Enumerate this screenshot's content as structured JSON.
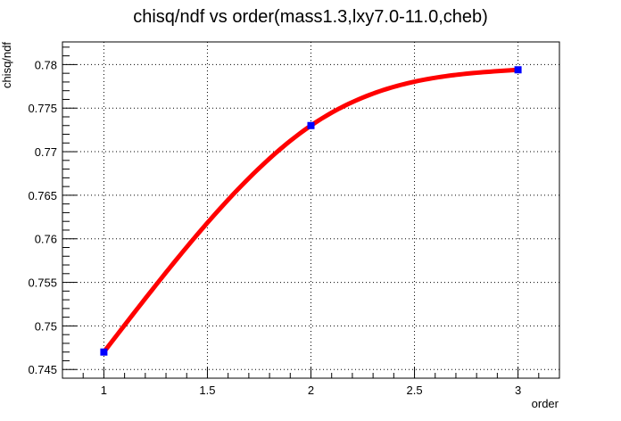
{
  "chart_data": {
    "type": "line",
    "title": "chisq/ndf vs order(mass1.3,lxy7.0-11.0,cheb)",
    "xlabel": "order",
    "ylabel": "chisq/ndf",
    "xlim": [
      0.8,
      3.2
    ],
    "ylim": [
      0.744,
      0.7826
    ],
    "grid": true,
    "x_ticks": [
      1,
      1.5,
      2,
      2.5,
      3
    ],
    "x_tick_labels": [
      "1",
      "1.5",
      "2",
      "2.5",
      "3"
    ],
    "y_ticks": [
      0.745,
      0.75,
      0.755,
      0.76,
      0.765,
      0.77,
      0.775,
      0.78
    ],
    "y_tick_labels": [
      "0.745",
      "0.75",
      "0.755",
      "0.76",
      "0.765",
      "0.77",
      "0.775",
      "0.78"
    ],
    "series": [
      {
        "kind": "markers",
        "color": "#0000ff",
        "x": [
          1,
          2,
          3
        ],
        "y": [
          0.747,
          0.773,
          0.7794
        ]
      },
      {
        "kind": "smooth-curve",
        "color": "#ff0000",
        "x": [
          1,
          2,
          3
        ],
        "y": [
          0.747,
          0.773,
          0.7794
        ]
      }
    ]
  }
}
